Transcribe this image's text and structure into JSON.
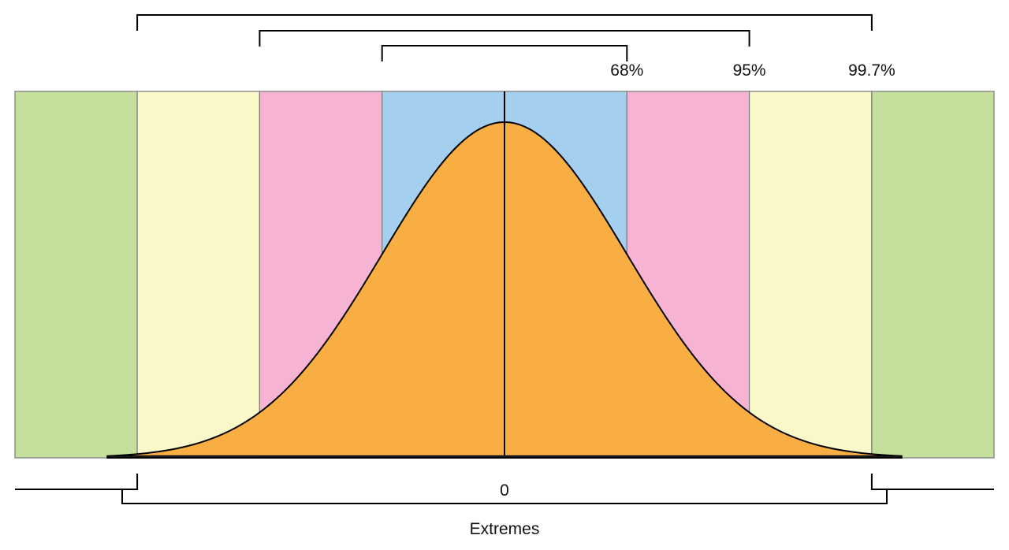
{
  "colors": {
    "outer": "#C5DF9C",
    "second": "#F8F8C9",
    "third": "#F6B3D4",
    "inner": "#A4CFEE",
    "curve_fill": "#F9AE43",
    "lines": "#000000",
    "band_border": "#808080"
  },
  "bands": [
    {
      "name": "outer-left",
      "from_sd": -4,
      "to_sd": -3,
      "color_key": "outer"
    },
    {
      "name": "second-left",
      "from_sd": -3,
      "to_sd": -2,
      "color_key": "second"
    },
    {
      "name": "third-left",
      "from_sd": -2,
      "to_sd": -1,
      "color_key": "third"
    },
    {
      "name": "inner-left",
      "from_sd": -1,
      "to_sd": 0,
      "color_key": "inner"
    },
    {
      "name": "inner-right",
      "from_sd": 0,
      "to_sd": 1,
      "color_key": "inner"
    },
    {
      "name": "third-right",
      "from_sd": 1,
      "to_sd": 2,
      "color_key": "third"
    },
    {
      "name": "second-right",
      "from_sd": 2,
      "to_sd": 3,
      "color_key": "second"
    },
    {
      "name": "outer-right",
      "from_sd": 3,
      "to_sd": 4,
      "color_key": "outer"
    }
  ],
  "brackets": [
    {
      "label": "68%",
      "sd": 1
    },
    {
      "label": "95%",
      "sd": 2
    },
    {
      "label": "99.7%",
      "sd": 3
    }
  ],
  "center_label": "0",
  "extremes_label": "Extremes"
}
